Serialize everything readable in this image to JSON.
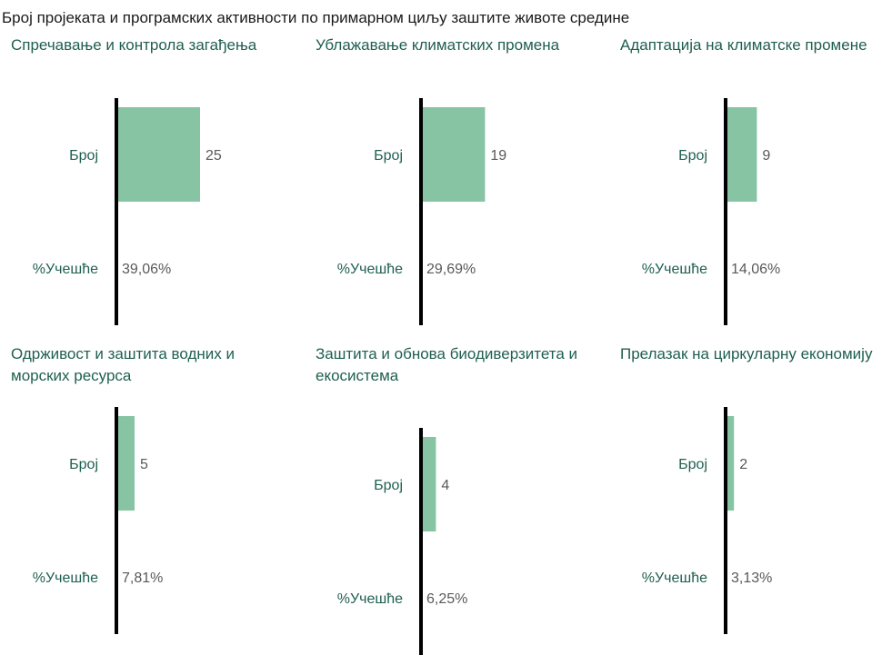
{
  "title": "Број пројеката и програмских активности по примарном циљу заштите животе средине",
  "colors": {
    "bar": "#87c4a3",
    "axis": "#000000",
    "category_text": "#1f5f4f",
    "value_text": "#595959"
  },
  "chart_data": [
    {
      "type": "bar",
      "title": "Спречавање и контрола загађења",
      "categories": [
        "Број",
        "%Учешће"
      ],
      "count": 25,
      "count_label": "25",
      "share_label": "39,06%",
      "xlim": [
        0,
        60
      ]
    },
    {
      "type": "bar",
      "title": "Ублажавање климатских промена",
      "categories": [
        "Број",
        "%Учешће"
      ],
      "count": 19,
      "count_label": "19",
      "share_label": "29,69%",
      "xlim": [
        0,
        60
      ]
    },
    {
      "type": "bar",
      "title": "Адаптација на климатске промене",
      "categories": [
        "Број",
        "%Учешће"
      ],
      "count": 9,
      "count_label": "9",
      "share_label": "14,06%",
      "xlim": [
        0,
        60
      ]
    },
    {
      "type": "bar",
      "title": "Одрживост и заштита водних и морских ресурса",
      "categories": [
        "Број",
        "%Учешће"
      ],
      "count": 5,
      "count_label": "5",
      "share_label": "7,81%",
      "xlim": [
        0,
        60
      ]
    },
    {
      "type": "bar",
      "title": "Заштита и обнова биодиверзитета и екосистема",
      "categories": [
        "Број",
        "%Учешће"
      ],
      "count": 4,
      "count_label": "4",
      "share_label": "6,25%",
      "xlim": [
        0,
        60
      ]
    },
    {
      "type": "bar",
      "title": "Прелазак на циркуларну економију",
      "categories": [
        "Број",
        "%Учешће"
      ],
      "count": 2,
      "count_label": "2",
      "share_label": "3,13%",
      "xlim": [
        0,
        60
      ]
    }
  ]
}
